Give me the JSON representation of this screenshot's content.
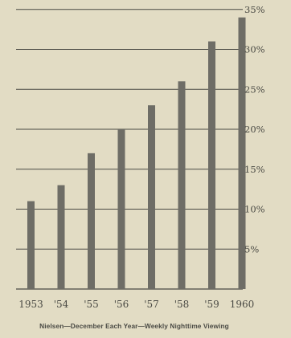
{
  "chart_data": {
    "type": "bar",
    "categories": [
      "1953",
      "'54",
      "'55",
      "'56",
      "'57",
      "'58",
      "'59",
      "1960"
    ],
    "values": [
      11,
      13,
      17,
      20,
      23,
      26,
      31,
      34
    ],
    "ytick_labels": [
      "5%",
      "10%",
      "15%",
      "20%",
      "25%",
      "30%",
      "35%"
    ],
    "ytick_values": [
      5,
      10,
      15,
      20,
      25,
      30,
      35
    ],
    "ylim": [
      0,
      35
    ],
    "caption": "Nielsen—December Each Year—Weekly Nighttime Viewing",
    "grid": true,
    "colors": {
      "background": "#e2dcc4",
      "bar": "#6e6d66",
      "grid": "#4a4a44",
      "text": "#4a4a44"
    }
  }
}
